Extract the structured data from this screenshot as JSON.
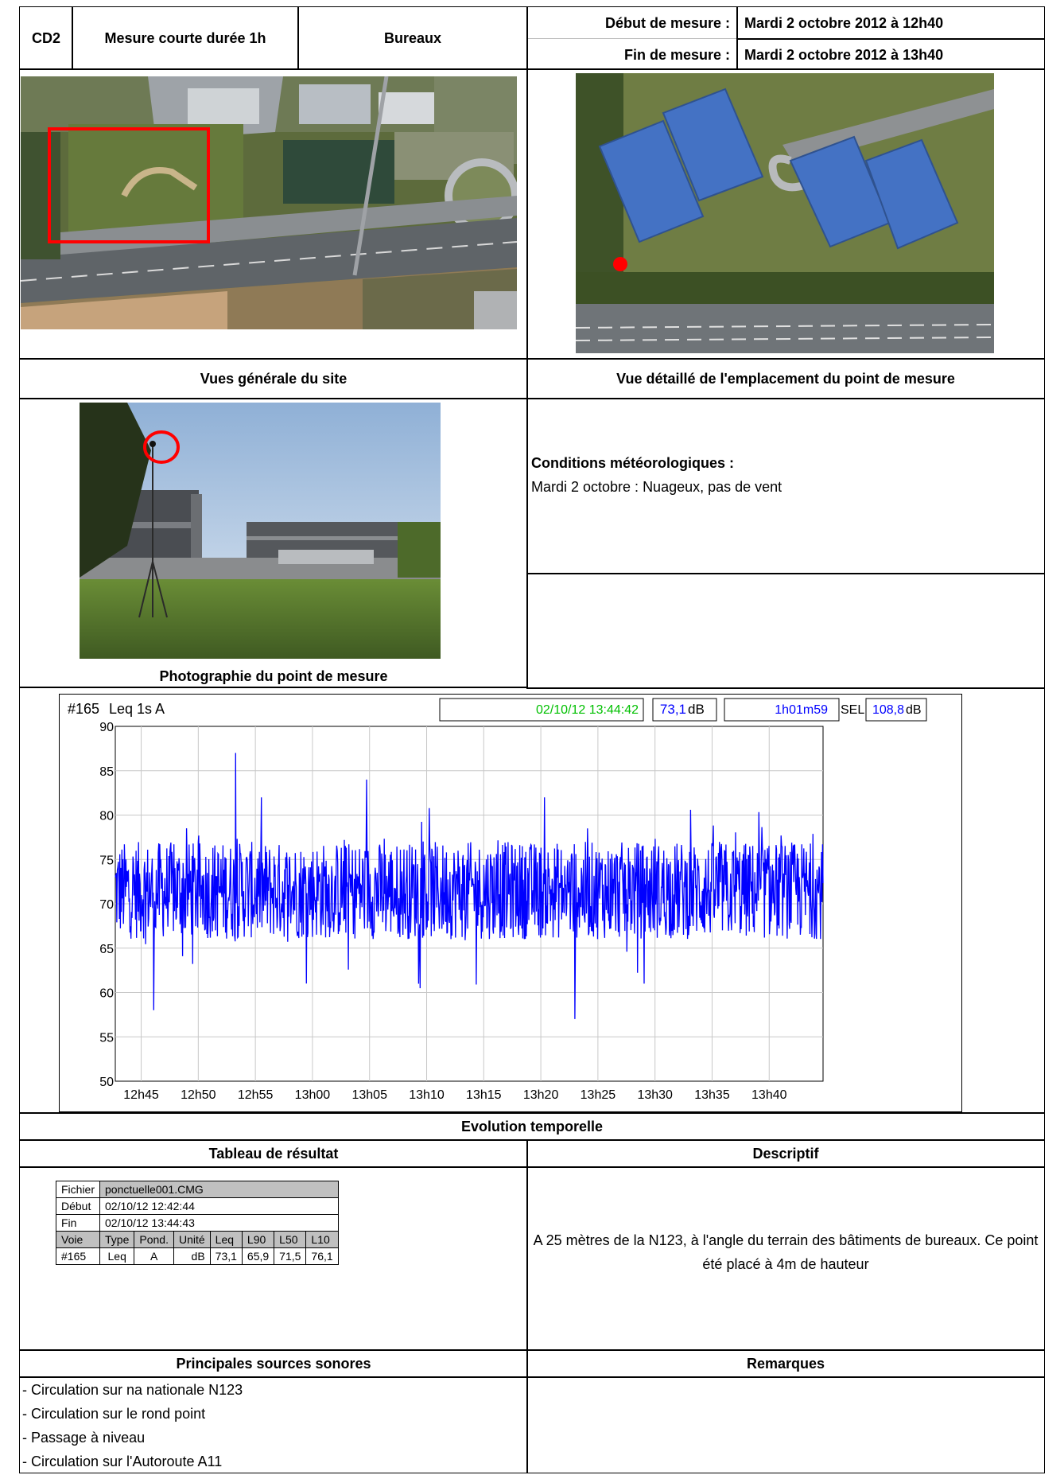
{
  "header": {
    "code": "CD2",
    "measure_type": "Mesure courte durée 1h",
    "site_type": "Bureaux",
    "start_label": "Début de mesure :",
    "start_value": "Mardi 2 octobre 2012 à 12h40",
    "end_label": "Fin de mesure :",
    "end_value": "Mardi 2 octobre 2012 à 13h40"
  },
  "sections": {
    "general_view": "Vues générale du site",
    "detail_view": "Vue détaillé de l'emplacement du point de mesure",
    "photo": "Photographie du point de mesure",
    "evolution": "Evolution temporelle",
    "results_table": "Tableau de résultat",
    "descriptif": "Descriptif",
    "sources": "Principales sources sonores",
    "remarques": "Remarques"
  },
  "weather": {
    "title": "Conditions météorologiques :",
    "text": "Mardi 2  octobre : Nuageux, pas de vent"
  },
  "chart_header": {
    "channel": "#165",
    "measure": "Leq 1s A",
    "timestamp": "02/10/12 13:44:42",
    "value": "73,1",
    "value_unit": "dB",
    "duration": "1h01m59",
    "sel_label": "SEL",
    "sel_value": "108,8",
    "sel_unit": "dB",
    "timestamp_color": "#00c000",
    "value_color": "#0000ff"
  },
  "chart_data": {
    "type": "line",
    "series_color": "#0000ff",
    "ylim": [
      50,
      90
    ],
    "yticks": [
      "90",
      "85",
      "80",
      "75",
      "70",
      "65",
      "60",
      "55",
      "50"
    ],
    "xticks": [
      "12h45",
      "12h50",
      "12h55",
      "13h00",
      "13h05",
      "13h10",
      "13h15",
      "13h20",
      "13h25",
      "13h30",
      "13h35",
      "13h40"
    ],
    "x_start": "12:42:44",
    "x_end": "13:44:43",
    "y_mean": 71.5,
    "y_peaks": [
      {
        "t": "12:53:15",
        "y": 87
      },
      {
        "t": "13:04:45",
        "y": 84
      },
      {
        "t": "12:46:05",
        "y": 58
      },
      {
        "t": "13:23:00",
        "y": 57
      }
    ]
  },
  "results": {
    "file_label": "Fichier",
    "file_value": "ponctuelle001.CMG",
    "start_label": "Début",
    "start_value": "02/10/12 12:42:44",
    "end_label": "Fin",
    "end_value": "02/10/12 13:44:43",
    "headers": [
      "Voie",
      "Type",
      "Pond.",
      "Unité",
      "Leq",
      "L90",
      "L50",
      "L10"
    ],
    "row": [
      "#165",
      "Leq",
      "A",
      "dB",
      "73,1",
      "65,9",
      "71,5",
      "76,1"
    ]
  },
  "descriptif": {
    "text": "A 25 mètres de la N123, à l'angle du terrain des bâtiments de bureaux. Ce point été placé à 4m de hauteur"
  },
  "sources": [
    "- Circulation sur na nationale N123",
    "- Circulation sur le rond point",
    "- Passage à niveau",
    "- Circulation sur l'Autoroute A11"
  ]
}
